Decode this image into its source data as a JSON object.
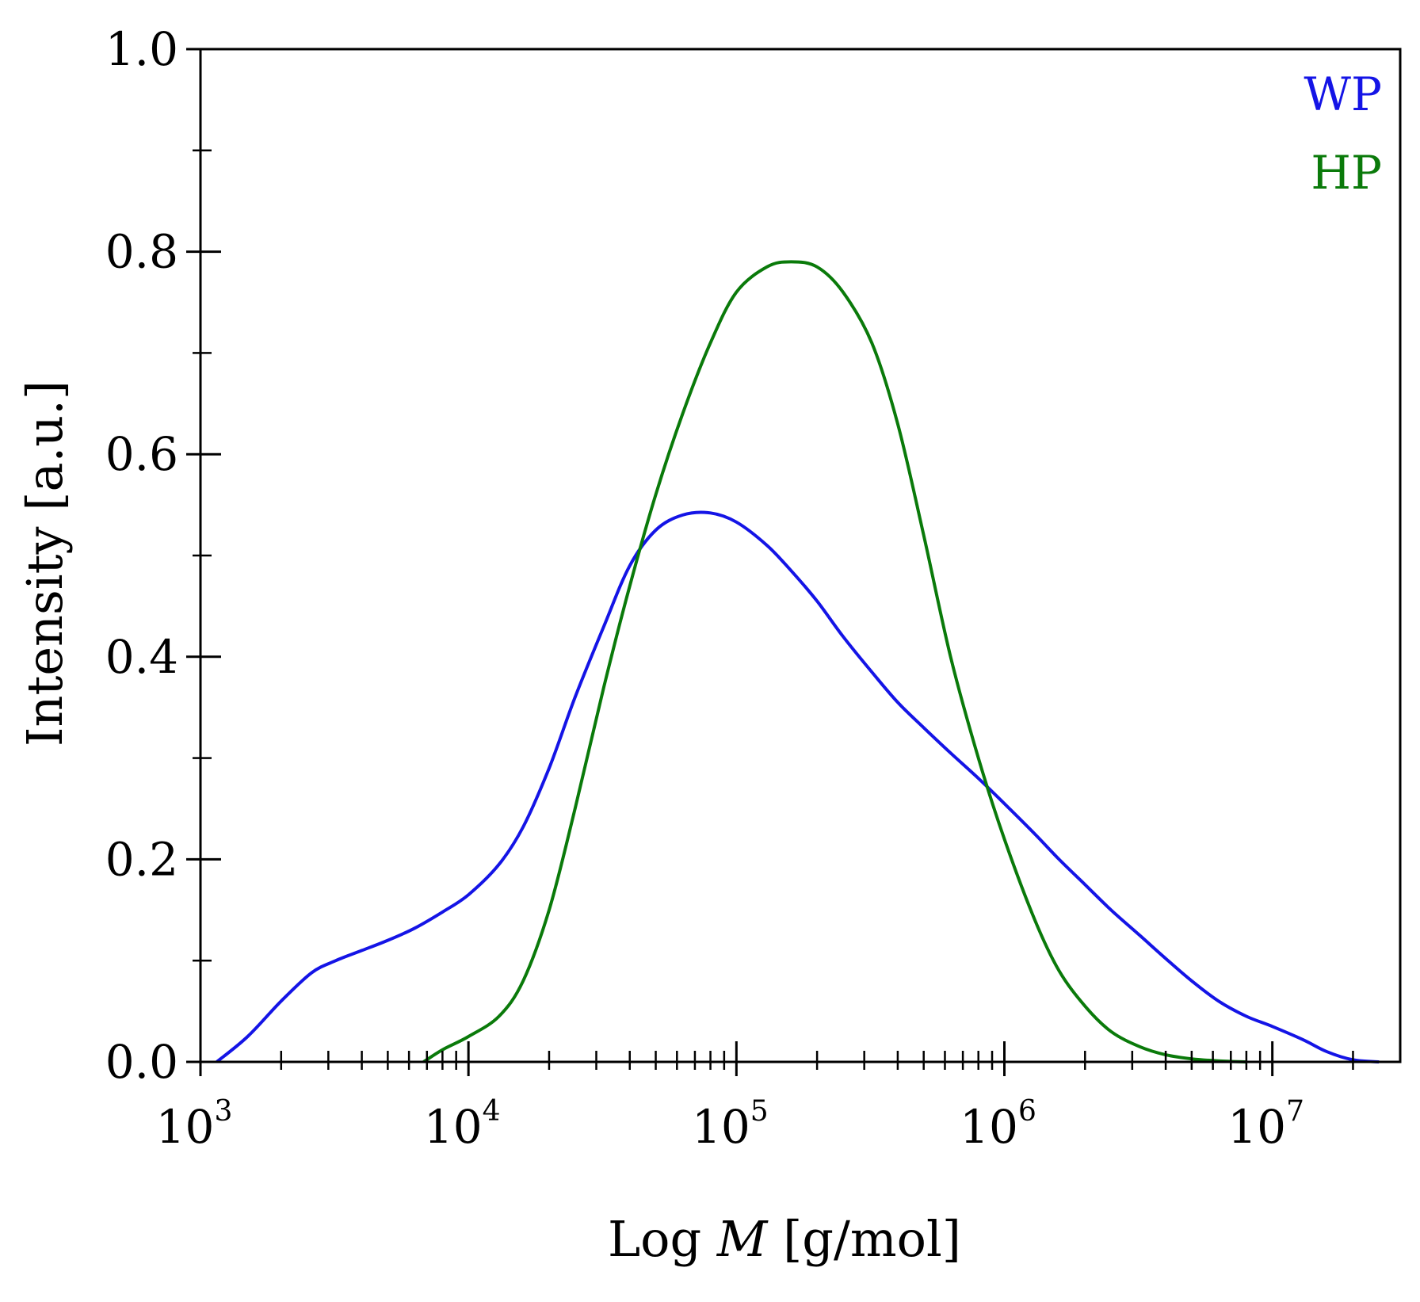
{
  "chart_data": {
    "type": "line",
    "xlabel_prefix": "Log ",
    "xlabel_var": "M",
    "xlabel_suffix": " [g/mol]",
    "ylabel": "Intensity [a.u.]",
    "x_scale": "log",
    "xlim": [
      1000,
      30000000
    ],
    "ylim": [
      0,
      1
    ],
    "x_ticks": [
      {
        "value": 1000,
        "base": "10",
        "exp": "3"
      },
      {
        "value": 10000,
        "base": "10",
        "exp": "4"
      },
      {
        "value": 100000,
        "base": "10",
        "exp": "5"
      },
      {
        "value": 1000000,
        "base": "10",
        "exp": "6"
      },
      {
        "value": 10000000,
        "base": "10",
        "exp": "7"
      }
    ],
    "y_ticks": [
      {
        "value": 0,
        "label": "0.0"
      },
      {
        "value": 0.2,
        "label": "0.2"
      },
      {
        "value": 0.4,
        "label": "0.4"
      },
      {
        "value": 0.6,
        "label": "0.6"
      },
      {
        "value": 0.8,
        "label": "0.8"
      },
      {
        "value": 1.0,
        "label": "1.0"
      }
    ],
    "grid": false,
    "legend_position": "top-right",
    "series": [
      {
        "name": "WP",
        "color": "#1414e6",
        "x": [
          1150,
          1500,
          2000,
          2600,
          3200,
          4000,
          5000,
          6300,
          8000,
          10000,
          13000,
          16000,
          20000,
          25000,
          32000,
          40000,
          50000,
          63000,
          80000,
          100000,
          130000,
          160000,
          200000,
          250000,
          320000,
          400000,
          500000,
          630000,
          800000,
          1000000,
          1300000,
          1600000,
          2000000,
          2500000,
          3200000,
          4000000,
          5000000,
          6300000,
          8000000,
          10000000,
          13000000,
          16000000,
          20000000,
          25000000
        ],
        "y": [
          0.0,
          0.025,
          0.06,
          0.088,
          0.1,
          0.11,
          0.12,
          0.132,
          0.148,
          0.165,
          0.195,
          0.232,
          0.29,
          0.36,
          0.43,
          0.49,
          0.525,
          0.54,
          0.542,
          0.533,
          0.51,
          0.485,
          0.455,
          0.42,
          0.385,
          0.355,
          0.33,
          0.305,
          0.28,
          0.255,
          0.225,
          0.2,
          0.175,
          0.15,
          0.125,
          0.102,
          0.08,
          0.06,
          0.045,
          0.035,
          0.022,
          0.01,
          0.002,
          0.0
        ]
      },
      {
        "name": "HP",
        "color": "#0a7a0a",
        "x": [
          6800,
          8000,
          10000,
          13000,
          16000,
          20000,
          25000,
          32000,
          40000,
          50000,
          63000,
          80000,
          100000,
          130000,
          160000,
          200000,
          250000,
          320000,
          400000,
          500000,
          630000,
          800000,
          1000000,
          1300000,
          1600000,
          2000000,
          2500000,
          3200000,
          4000000,
          5000000,
          6300000,
          8000000
        ],
        "y": [
          0.0,
          0.012,
          0.025,
          0.045,
          0.08,
          0.15,
          0.25,
          0.37,
          0.47,
          0.56,
          0.64,
          0.71,
          0.76,
          0.785,
          0.79,
          0.785,
          0.76,
          0.71,
          0.63,
          0.52,
          0.4,
          0.3,
          0.22,
          0.14,
          0.09,
          0.055,
          0.03,
          0.015,
          0.007,
          0.003,
          0.001,
          0.0
        ]
      }
    ]
  }
}
